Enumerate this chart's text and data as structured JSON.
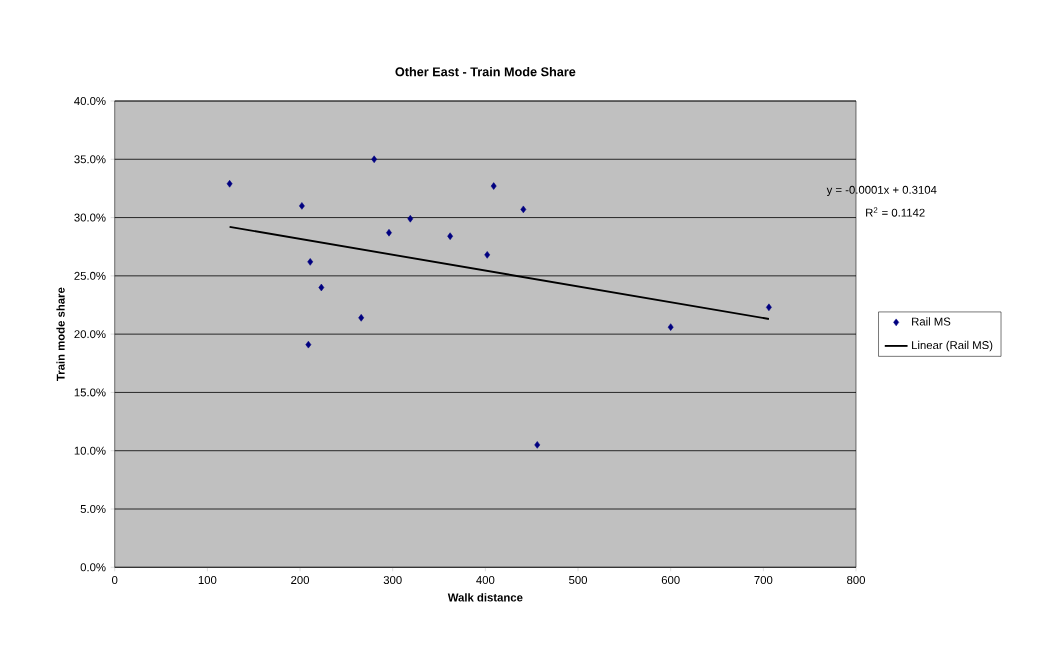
{
  "chart_data": {
    "type": "scatter",
    "title": "Other East - Train Mode Share",
    "xlabel": "Walk distance",
    "ylabel": "Train mode share",
    "xlim": [
      0,
      800
    ],
    "xticks": [
      0,
      100,
      200,
      300,
      400,
      500,
      600,
      700,
      800
    ],
    "ylim": [
      0,
      40
    ],
    "yticks": [
      {
        "value": 0,
        "label": "0.0%"
      },
      {
        "value": 5,
        "label": "5.0%"
      },
      {
        "value": 10,
        "label": "10.0%"
      },
      {
        "value": 15,
        "label": "15.0%"
      },
      {
        "value": 20,
        "label": "20.0%"
      },
      {
        "value": 25,
        "label": "25.0%"
      },
      {
        "value": 30,
        "label": "30.0%"
      },
      {
        "value": 35,
        "label": "35.0%"
      },
      {
        "value": 40,
        "label": "40.0%"
      }
    ],
    "grid": "y",
    "legend": "right",
    "marker": "diamond",
    "series": [
      {
        "name": "Rail MS",
        "color": "#000080",
        "x": [
          124,
          202,
          280,
          319,
          296,
          362,
          211,
          223,
          266,
          209,
          409,
          441,
          402,
          600,
          706,
          456
        ],
        "values": [
          32.9,
          31.0,
          35.0,
          29.9,
          28.7,
          28.4,
          26.2,
          24.0,
          21.4,
          19.1,
          32.7,
          30.7,
          26.8,
          20.6,
          22.3,
          10.5
        ]
      },
      {
        "name": "Linear (Rail MS)",
        "type": "line",
        "color": "#000000",
        "marker": "none",
        "x": [
          124,
          706
        ],
        "values": [
          29.2,
          21.3
        ]
      }
    ],
    "annotations": [
      "y = -0.0001x + 0.3104",
      "R$^{2}$ = 0.1142"
    ]
  }
}
